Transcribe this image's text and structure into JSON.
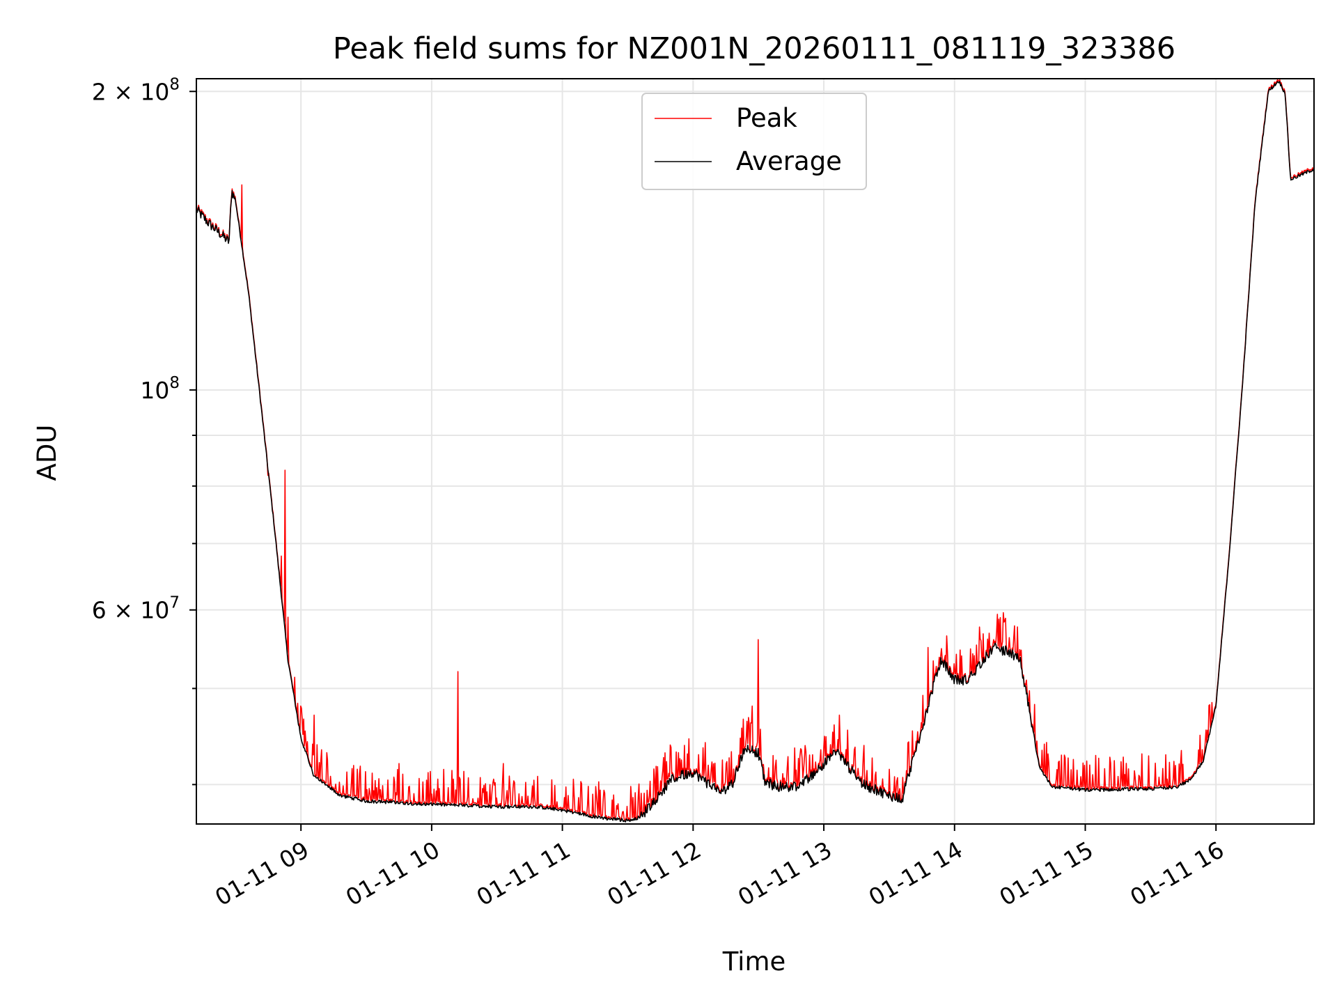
{
  "chart_data": {
    "type": "line",
    "title": "Peak field sums for NZ001N_20260111_081119_323386",
    "xlabel": "Time",
    "ylabel": "ADU",
    "yscale": "log",
    "x_unit": "hours since 2026-01-11 00:00",
    "xlim": [
      8.2,
      16.75
    ],
    "ylim": [
      36500000,
      206000000
    ],
    "x_ticks": [
      {
        "value": 9,
        "label": "01-11 09"
      },
      {
        "value": 10,
        "label": "01-11 10"
      },
      {
        "value": 11,
        "label": "01-11 11"
      },
      {
        "value": 12,
        "label": "01-11 12"
      },
      {
        "value": 13,
        "label": "01-11 13"
      },
      {
        "value": 14,
        "label": "01-11 14"
      },
      {
        "value": 15,
        "label": "01-11 15"
      },
      {
        "value": 16,
        "label": "01-11 16"
      }
    ],
    "y_major_ticks": [
      {
        "value": 60000000,
        "base": "6 × 10",
        "exp": "7"
      },
      {
        "value": 100000000,
        "base": "10",
        "exp": "8"
      },
      {
        "value": 200000000,
        "base": "2 × 10",
        "exp": "8"
      }
    ],
    "y_minor_ticks": [
      40000000,
      50000000,
      70000000,
      80000000,
      90000000
    ],
    "grid": true,
    "legend": {
      "position": "top-center",
      "entries": [
        "Peak",
        "Average"
      ]
    },
    "series": [
      {
        "name": "Peak",
        "color": "#ff0000"
      },
      {
        "name": "Average",
        "color": "#000000"
      }
    ],
    "average_keypoints": [
      [
        8.2,
        152000000
      ],
      [
        8.3,
        147000000
      ],
      [
        8.4,
        143000000
      ],
      [
        8.45,
        141000000
      ],
      [
        8.47,
        159000000
      ],
      [
        8.5,
        155000000
      ],
      [
        8.6,
        125000000
      ],
      [
        8.7,
        95000000
      ],
      [
        8.8,
        72000000
      ],
      [
        8.9,
        53500000
      ],
      [
        9.0,
        44500000
      ],
      [
        9.1,
        40800000
      ],
      [
        9.3,
        39000000
      ],
      [
        9.5,
        38500000
      ],
      [
        10.0,
        38200000
      ],
      [
        10.5,
        38000000
      ],
      [
        10.8,
        38000000
      ],
      [
        11.0,
        37700000
      ],
      [
        11.3,
        37000000
      ],
      [
        11.5,
        36800000
      ],
      [
        11.6,
        37100000
      ],
      [
        11.7,
        38500000
      ],
      [
        11.85,
        40600000
      ],
      [
        12.0,
        41200000
      ],
      [
        12.1,
        40200000
      ],
      [
        12.2,
        39300000
      ],
      [
        12.3,
        40000000
      ],
      [
        12.4,
        43700000
      ],
      [
        12.5,
        43000000
      ],
      [
        12.55,
        40200000
      ],
      [
        12.65,
        39800000
      ],
      [
        12.8,
        39800000
      ],
      [
        12.9,
        40800000
      ],
      [
        13.0,
        42000000
      ],
      [
        13.1,
        43200000
      ],
      [
        13.2,
        41500000
      ],
      [
        13.3,
        40000000
      ],
      [
        13.4,
        39500000
      ],
      [
        13.5,
        39000000
      ],
      [
        13.6,
        38700000
      ],
      [
        13.65,
        41000000
      ],
      [
        13.75,
        45500000
      ],
      [
        13.85,
        51000000
      ],
      [
        13.9,
        53500000
      ],
      [
        14.0,
        51000000
      ],
      [
        14.1,
        51000000
      ],
      [
        14.2,
        53000000
      ],
      [
        14.3,
        55000000
      ],
      [
        14.4,
        54500000
      ],
      [
        14.5,
        53500000
      ],
      [
        14.58,
        47000000
      ],
      [
        14.65,
        41500000
      ],
      [
        14.75,
        39800000
      ],
      [
        15.0,
        39500000
      ],
      [
        15.5,
        39600000
      ],
      [
        15.7,
        39800000
      ],
      [
        15.8,
        40400000
      ],
      [
        15.9,
        42200000
      ],
      [
        16.0,
        48000000
      ],
      [
        16.1,
        68000000
      ],
      [
        16.2,
        100000000
      ],
      [
        16.3,
        155000000
      ],
      [
        16.4,
        200000000
      ],
      [
        16.48,
        205000000
      ],
      [
        16.53,
        199000000
      ],
      [
        16.57,
        163000000
      ],
      [
        16.75,
        167000000
      ]
    ],
    "peak_spikes": [
      [
        8.55,
        161000000
      ],
      [
        8.75,
        82000000
      ],
      [
        8.85,
        68000000
      ],
      [
        8.88,
        83000000
      ],
      [
        8.9,
        59000000
      ],
      [
        9.0,
        48000000
      ],
      [
        9.1,
        47000000
      ],
      [
        9.75,
        42000000
      ],
      [
        10.2,
        52000000
      ],
      [
        10.55,
        42000000
      ],
      [
        12.45,
        48000000
      ],
      [
        12.5,
        56000000
      ],
      [
        13.12,
        47000000
      ],
      [
        13.8,
        55000000
      ],
      [
        14.3,
        56000000
      ]
    ]
  }
}
